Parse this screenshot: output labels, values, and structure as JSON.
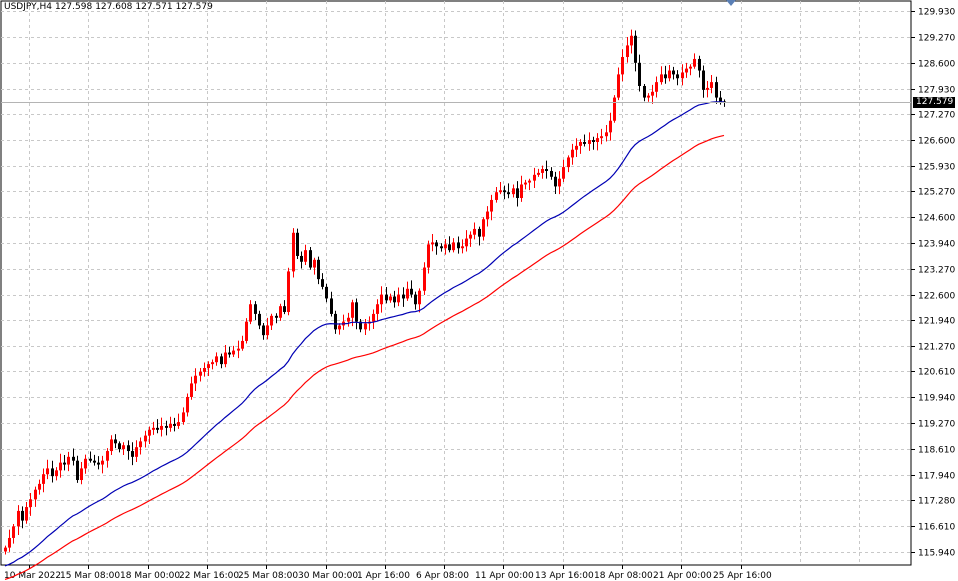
{
  "header": {
    "symbol": "USDJPY,H4",
    "open": "127.598",
    "high": "127.608",
    "low": "127.571",
    "close": "127.579"
  },
  "price_badge": "127.579",
  "colors": {
    "bull": "#ff0000",
    "bear": "#000000",
    "ma_fast": "#0000b4",
    "ma_slow": "#ff0000",
    "grid": "#c8c8c8",
    "axis": "#000000"
  },
  "chart_data": {
    "type": "line",
    "title": "",
    "ylim": [
      115.6,
      130.2
    ],
    "current_price": 127.579,
    "y_ticks": [
      129.93,
      129.27,
      128.6,
      127.93,
      127.27,
      126.6,
      125.93,
      125.27,
      124.6,
      123.94,
      123.27,
      122.6,
      121.94,
      121.27,
      120.61,
      119.94,
      119.27,
      118.61,
      117.94,
      117.28,
      116.61,
      115.94
    ],
    "x_ticks": [
      "10 Mar 2022",
      "15 Mar 08:00",
      "18 Mar 00:00",
      "22 Mar 16:00",
      "25 Mar 08:00",
      "30 Mar 00:00",
      "1 Apr 16:00",
      "6 Apr 08:00",
      "11 Apr 00:00",
      "13 Apr 16:00",
      "18 Apr 08:00",
      "21 Apr 00:00",
      "25 Apr 16:00"
    ],
    "series": [
      {
        "kind": "candles",
        "close": [
          116.05,
          116.3,
          116.6,
          117.0,
          116.75,
          117.1,
          117.3,
          117.55,
          117.7,
          117.95,
          118.1,
          117.9,
          118.05,
          118.25,
          118.2,
          118.4,
          118.3,
          117.8,
          118.1,
          118.35,
          118.3,
          118.25,
          118.2,
          118.3,
          118.55,
          118.85,
          118.75,
          118.6,
          118.7,
          118.55,
          118.4,
          118.65,
          118.8,
          118.95,
          119.1,
          119.15,
          119.1,
          119.2,
          119.15,
          119.25,
          119.2,
          119.3,
          119.55,
          119.95,
          120.3,
          120.5,
          120.6,
          120.7,
          120.8,
          120.85,
          121.0,
          120.8,
          121.1,
          121.05,
          121.15,
          121.2,
          121.4,
          121.9,
          122.35,
          122.1,
          121.8,
          121.55,
          121.8,
          122.05,
          122.0,
          122.3,
          122.15,
          123.2,
          124.2,
          123.6,
          123.45,
          123.75,
          123.3,
          123.5,
          123.0,
          122.8,
          122.5,
          122.1,
          121.7,
          121.8,
          121.9,
          122.0,
          122.4,
          121.9,
          121.7,
          121.85,
          121.9,
          122.1,
          122.35,
          122.6,
          122.45,
          122.55,
          122.4,
          122.6,
          122.5,
          122.75,
          122.6,
          122.35,
          122.7,
          123.3,
          123.9,
          123.95,
          123.85,
          123.8,
          123.9,
          123.75,
          123.95,
          123.8,
          123.85,
          124.05,
          124.15,
          124.3,
          124.1,
          124.55,
          124.75,
          125.05,
          125.25,
          125.3,
          125.25,
          125.2,
          125.35,
          125.1,
          125.45,
          125.5,
          125.55,
          125.7,
          125.75,
          125.85,
          125.8,
          125.65,
          125.4,
          125.6,
          125.9,
          126.15,
          126.35,
          126.45,
          126.55,
          126.5,
          126.6,
          126.55,
          126.65,
          126.7,
          126.8,
          127.1,
          127.7,
          128.3,
          128.75,
          129.05,
          129.3,
          128.6,
          128.0,
          127.7,
          127.75,
          127.85,
          128.1,
          128.3,
          128.2,
          128.4,
          128.3,
          128.2,
          128.35,
          128.45,
          128.5,
          128.7,
          128.4,
          127.9,
          127.95,
          128.1,
          127.7,
          127.6,
          127.579
        ]
      },
      {
        "kind": "line",
        "name": "",
        "color_key": "ma_fast"
      },
      {
        "kind": "line",
        "name": "",
        "color_key": "ma_slow"
      }
    ]
  }
}
